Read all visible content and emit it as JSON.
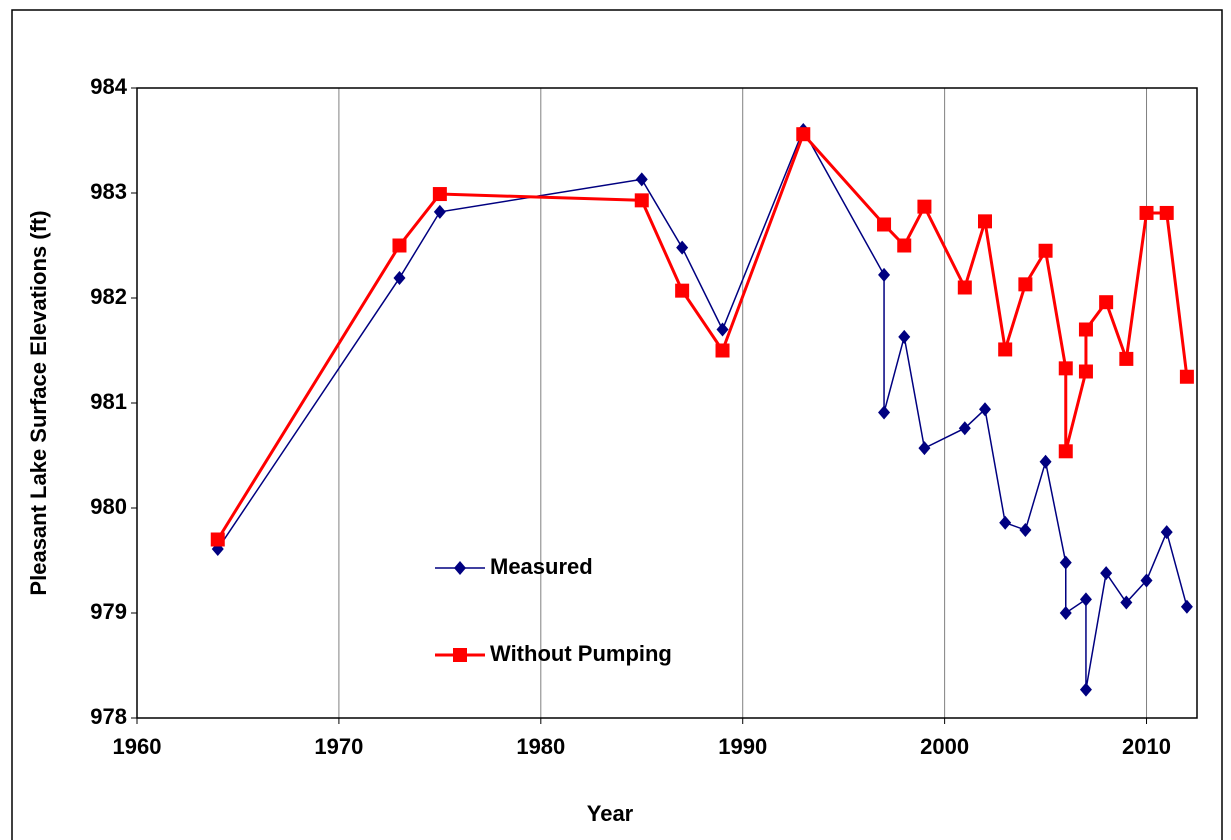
{
  "chart_data": {
    "type": "line",
    "xlabel": "Year",
    "ylabel": "Pleasant Lake Surface Elevations (ft)",
    "xlim": [
      1960,
      2012.5
    ],
    "ylim": [
      978,
      984
    ],
    "xticks": [
      1960,
      1970,
      1980,
      1990,
      2000,
      2010
    ],
    "yticks": [
      978,
      979,
      980,
      981,
      982,
      983,
      984
    ],
    "grid": "vertical",
    "legend": "lower left",
    "series": [
      {
        "name": "Measured",
        "color": "#000080",
        "marker": "diamond",
        "x": [
          1964,
          1973,
          1975,
          1985,
          1987,
          1989,
          1993,
          1997,
          1997,
          1998,
          1999,
          2001,
          2002,
          2003,
          2004,
          2005,
          2006,
          2006,
          2007,
          2007,
          2008,
          2009,
          2010,
          2011,
          2012
        ],
        "values": [
          979.61,
          982.19,
          982.82,
          983.13,
          982.48,
          981.7,
          983.6,
          982.22,
          980.91,
          981.63,
          980.57,
          980.76,
          980.94,
          979.86,
          979.79,
          980.44,
          979.48,
          979.0,
          979.13,
          978.27,
          979.38,
          979.1,
          979.31,
          979.77,
          979.06
        ]
      },
      {
        "name": "Without Pumping",
        "color": "#ff0000",
        "marker": "square",
        "x": [
          1964,
          1973,
          1975,
          1985,
          1987,
          1989,
          1993,
          1997,
          1998,
          1999,
          2001,
          2002,
          2003,
          2004,
          2005,
          2006,
          2006,
          2007,
          2007,
          2008,
          2009,
          2010,
          2011,
          2012
        ],
        "values": [
          979.7,
          982.5,
          982.99,
          982.93,
          982.07,
          981.5,
          983.56,
          982.7,
          982.5,
          982.87,
          982.1,
          982.73,
          981.51,
          982.13,
          982.45,
          981.33,
          980.54,
          981.3,
          981.7,
          981.96,
          981.42,
          982.81,
          982.81,
          981.25
        ]
      }
    ]
  }
}
